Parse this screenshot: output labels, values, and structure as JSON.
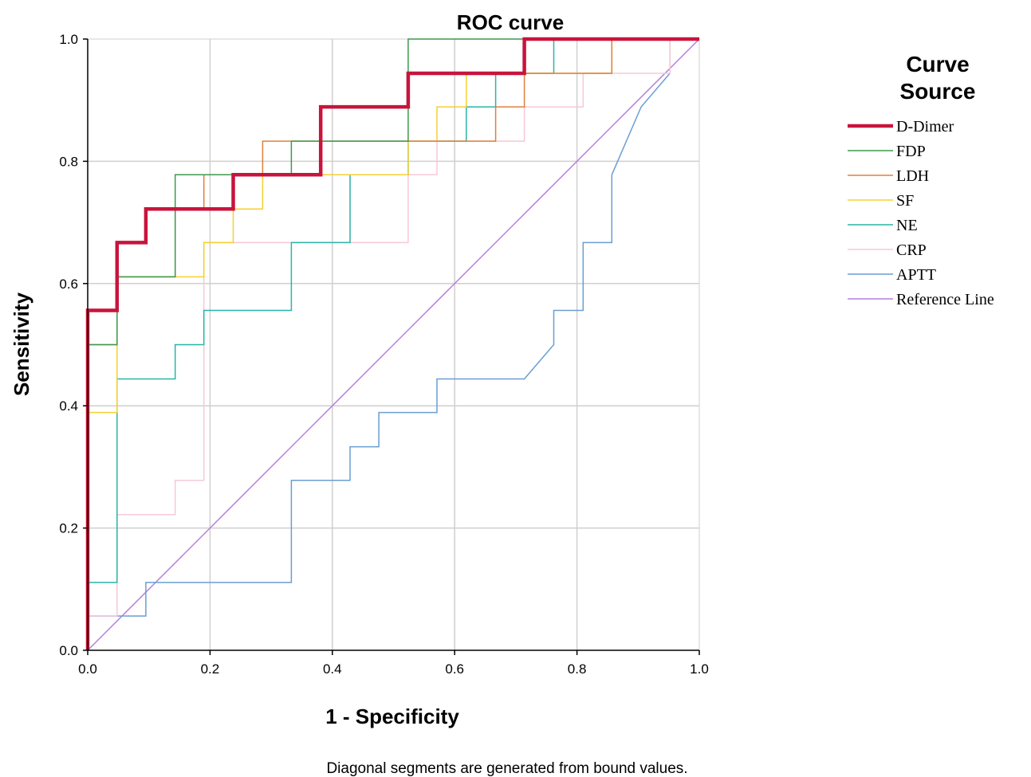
{
  "chart_data": {
    "type": "line",
    "title": "ROC  curve",
    "xlabel": "1 - Specificity",
    "ylabel": "Sensitivity",
    "footnote": "Diagonal segments are generated from bound values.",
    "xlim": [
      0,
      1
    ],
    "ylim": [
      0,
      1
    ],
    "x_ticks": [
      "0.0",
      "0.2",
      "0.4",
      "0.6",
      "0.8",
      "1.0"
    ],
    "y_ticks": [
      "0.0",
      "0.2",
      "0.4",
      "0.6",
      "0.8",
      "1.0"
    ],
    "grid": true,
    "legend_title_line1": "Curve",
    "legend_title_line2": "Source",
    "legend_position": "right",
    "series": [
      {
        "name": "D-Dimer",
        "color": "#c8143c",
        "width": 4.5,
        "points": [
          [
            0,
            0
          ],
          [
            0,
            0.556
          ],
          [
            0.048,
            0.556
          ],
          [
            0.048,
            0.667
          ],
          [
            0.095,
            0.667
          ],
          [
            0.095,
            0.722
          ],
          [
            0.238,
            0.722
          ],
          [
            0.238,
            0.778
          ],
          [
            0.381,
            0.778
          ],
          [
            0.381,
            0.889
          ],
          [
            0.524,
            0.889
          ],
          [
            0.524,
            0.944
          ],
          [
            0.714,
            0.944
          ],
          [
            0.714,
            1
          ],
          [
            1,
            1
          ]
        ]
      },
      {
        "name": "FDP",
        "color": "#3d9a4c",
        "width": 1.5,
        "points": [
          [
            0,
            0
          ],
          [
            0,
            0.5
          ],
          [
            0.048,
            0.5
          ],
          [
            0.048,
            0.611
          ],
          [
            0.143,
            0.611
          ],
          [
            0.143,
            0.778
          ],
          [
            0.333,
            0.778
          ],
          [
            0.333,
            0.833
          ],
          [
            0.524,
            0.833
          ],
          [
            0.524,
            1
          ],
          [
            1,
            1
          ]
        ]
      },
      {
        "name": "LDH",
        "color": "#e0803c",
        "width": 1.5,
        "points": [
          [
            0,
            0
          ],
          [
            0,
            0.5
          ],
          [
            0.048,
            0.5
          ],
          [
            0.048,
            0.611
          ],
          [
            0.143,
            0.611
          ],
          [
            0.143,
            0.722
          ],
          [
            0.19,
            0.722
          ],
          [
            0.19,
            0.778
          ],
          [
            0.286,
            0.778
          ],
          [
            0.286,
            0.833
          ],
          [
            0.667,
            0.833
          ],
          [
            0.667,
            0.889
          ],
          [
            0.714,
            0.889
          ],
          [
            0.714,
            0.944
          ],
          [
            0.857,
            0.944
          ],
          [
            0.857,
            1
          ],
          [
            1,
            1
          ]
        ]
      },
      {
        "name": "SF",
        "color": "#f5d030",
        "width": 1.5,
        "points": [
          [
            0,
            0
          ],
          [
            0,
            0.389
          ],
          [
            0.048,
            0.389
          ],
          [
            0.048,
            0.611
          ],
          [
            0.19,
            0.611
          ],
          [
            0.19,
            0.667
          ],
          [
            0.238,
            0.667
          ],
          [
            0.238,
            0.722
          ],
          [
            0.286,
            0.722
          ],
          [
            0.286,
            0.778
          ],
          [
            0.524,
            0.778
          ],
          [
            0.524,
            0.833
          ],
          [
            0.571,
            0.833
          ],
          [
            0.571,
            0.889
          ],
          [
            0.619,
            0.889
          ],
          [
            0.619,
            0.944
          ],
          [
            0.857,
            0.944
          ],
          [
            0.857,
            1
          ],
          [
            1,
            1
          ]
        ]
      },
      {
        "name": "NE",
        "color": "#2ab4a8",
        "width": 1.5,
        "points": [
          [
            0,
            0
          ],
          [
            0,
            0.111
          ],
          [
            0.048,
            0.111
          ],
          [
            0.048,
            0.444
          ],
          [
            0.143,
            0.444
          ],
          [
            0.143,
            0.5
          ],
          [
            0.19,
            0.5
          ],
          [
            0.19,
            0.556
          ],
          [
            0.333,
            0.556
          ],
          [
            0.333,
            0.667
          ],
          [
            0.429,
            0.667
          ],
          [
            0.429,
            0.778
          ],
          [
            0.524,
            0.778
          ],
          [
            0.524,
            0.833
          ],
          [
            0.619,
            0.833
          ],
          [
            0.619,
            0.889
          ],
          [
            0.667,
            0.889
          ],
          [
            0.667,
            0.944
          ],
          [
            0.762,
            0.944
          ],
          [
            0.762,
            1
          ],
          [
            1,
            1
          ]
        ]
      },
      {
        "name": "CRP",
        "color": "#f7c8d8",
        "width": 1.5,
        "points": [
          [
            0,
            0
          ],
          [
            0,
            0.056
          ],
          [
            0.048,
            0.056
          ],
          [
            0.048,
            0.222
          ],
          [
            0.143,
            0.222
          ],
          [
            0.143,
            0.278
          ],
          [
            0.19,
            0.278
          ],
          [
            0.19,
            0.667
          ],
          [
            0.524,
            0.667
          ],
          [
            0.524,
            0.778
          ],
          [
            0.571,
            0.778
          ],
          [
            0.571,
            0.833
          ],
          [
            0.714,
            0.833
          ],
          [
            0.714,
            0.889
          ],
          [
            0.81,
            0.889
          ],
          [
            0.81,
            0.944
          ],
          [
            0.952,
            0.944
          ],
          [
            0.952,
            1
          ],
          [
            1,
            1
          ]
        ]
      },
      {
        "name": "APTT",
        "color": "#6a9ed2",
        "width": 1.5,
        "points": [
          [
            0,
            0
          ],
          [
            0,
            0.056
          ],
          [
            0.095,
            0.056
          ],
          [
            0.095,
            0.111
          ],
          [
            0.333,
            0.111
          ],
          [
            0.333,
            0.278
          ],
          [
            0.429,
            0.278
          ],
          [
            0.429,
            0.333
          ],
          [
            0.476,
            0.333
          ],
          [
            0.476,
            0.389
          ],
          [
            0.571,
            0.389
          ],
          [
            0.571,
            0.444
          ],
          [
            0.714,
            0.444
          ],
          [
            0.762,
            0.5
          ],
          [
            0.762,
            0.556
          ],
          [
            0.81,
            0.556
          ],
          [
            0.81,
            0.667
          ],
          [
            0.857,
            0.667
          ],
          [
            0.857,
            0.778
          ],
          [
            0.905,
            0.889
          ],
          [
            0.952,
            0.944
          ],
          [
            0.952,
            1
          ],
          [
            1,
            1
          ]
        ]
      },
      {
        "name": "Reference Line",
        "color": "#b57ee0",
        "width": 1.5,
        "points": [
          [
            0,
            0
          ],
          [
            1,
            1
          ]
        ]
      }
    ]
  }
}
